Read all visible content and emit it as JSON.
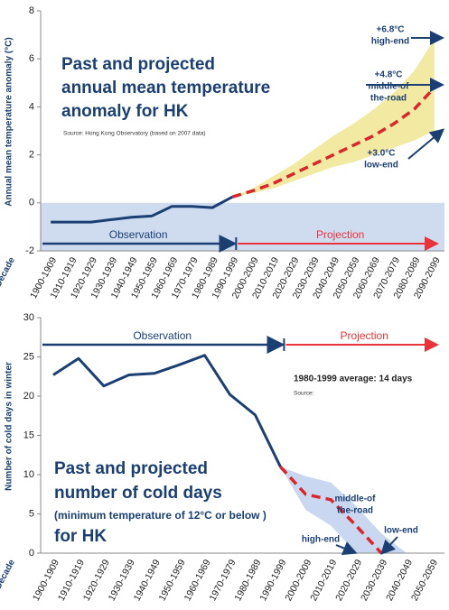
{
  "chart_data": [
    {
      "type": "line",
      "title": [
        "Past and projected",
        "annual mean temperature",
        "anomaly for HK"
      ],
      "source": "Source: Hong Kong Observatory (based on 2007 data)",
      "ylabel": "Annual mean temperature anomaly (°C)",
      "xlabel": "Decade",
      "categories": [
        "1900-1909",
        "1910-1919",
        "1920-1929",
        "1930-1939",
        "1940-1949",
        "1950-1959",
        "1960-1969",
        "1970-1979",
        "1980-1989",
        "1990-1999",
        "2000-2009",
        "2010-2019",
        "2020-2029",
        "2030-2039",
        "2040-2049",
        "2050-2059",
        "2060-2069",
        "2070-2079",
        "2080-2089",
        "2090-2099"
      ],
      "series": [
        {
          "name": "Observation",
          "color": "#1b3f73",
          "dash": false,
          "values": [
            -0.8,
            -0.8,
            -0.8,
            -0.7,
            -0.6,
            -0.55,
            -0.15,
            -0.15,
            -0.2,
            0.25,
            null,
            null,
            null,
            null,
            null,
            null,
            null,
            null,
            null,
            null
          ]
        },
        {
          "name": "Projection",
          "color": "#d9262b",
          "dash": true,
          "values": [
            null,
            null,
            null,
            null,
            null,
            null,
            null,
            null,
            null,
            0.25,
            0.5,
            0.8,
            1.2,
            1.6,
            2.0,
            2.4,
            2.8,
            3.3,
            3.9,
            4.8
          ]
        }
      ],
      "band": {
        "color": "#f2eaa2",
        "upper": [
          null,
          null,
          null,
          null,
          null,
          null,
          null,
          null,
          null,
          0.25,
          0.6,
          1.1,
          1.6,
          2.2,
          2.8,
          3.3,
          3.9,
          4.6,
          5.5,
          6.8
        ],
        "lower": [
          null,
          null,
          null,
          null,
          null,
          null,
          null,
          null,
          null,
          0.25,
          0.4,
          0.6,
          0.9,
          1.2,
          1.5,
          1.7,
          2.0,
          2.3,
          2.6,
          3.0
        ]
      },
      "annotations": [
        [
          "+6.8°C",
          "high-end"
        ],
        [
          "+4.8°C",
          "middle-of",
          "the-road"
        ],
        [
          "+3.0°C",
          "low-end"
        ]
      ],
      "ylim": [
        -2,
        8
      ],
      "yticks": [
        -2,
        0,
        2,
        4,
        6,
        8
      ]
    },
    {
      "type": "line",
      "title": [
        "Past and projected",
        "number of cold days"
      ],
      "subtitle": "(minimum temperature of 12°C or below )",
      "title_end": "for HK",
      "note": "1980-1999 average: 14 days",
      "source": "Source:",
      "ylabel": "Number of cold days in winter",
      "xlabel": "Decade",
      "categories": [
        "1900-1909",
        "1910-1919",
        "1920-1929",
        "1930-1939",
        "1940-1949",
        "1950-1959",
        "1960-1969",
        "1970-1979",
        "1980-1989",
        "1990-1999",
        "2000-2009",
        "2010-2019",
        "2020-2029",
        "2030-2039",
        "2040-2049",
        "2050-2059"
      ],
      "series": [
        {
          "name": "Observation",
          "color": "#1b3f73",
          "dash": false,
          "values": [
            22.7,
            24.8,
            21.3,
            22.7,
            22.9,
            24,
            25.2,
            20.2,
            17.6,
            11,
            null,
            null,
            null,
            null,
            null,
            null
          ]
        },
        {
          "name": "Projection",
          "color": "#d9262b",
          "dash": true,
          "values": [
            null,
            null,
            null,
            null,
            null,
            null,
            null,
            null,
            null,
            11,
            7.5,
            6.8,
            3.5,
            0,
            null,
            null
          ]
        }
      ],
      "band": {
        "color": "#c9d8f0",
        "upper": [
          null,
          null,
          null,
          null,
          null,
          null,
          null,
          null,
          null,
          11,
          9.8,
          9,
          6,
          2.5,
          0,
          null
        ],
        "lower": [
          null,
          null,
          null,
          null,
          null,
          null,
          null,
          null,
          null,
          11,
          5.5,
          3.5,
          0,
          null,
          null,
          null
        ]
      },
      "annotations": [
        [
          "middle-of",
          "the-road"
        ],
        [
          "high-end"
        ],
        [
          "low-end"
        ]
      ],
      "ylim": [
        0,
        30
      ],
      "yticks": [
        0,
        5,
        10,
        15,
        20,
        25,
        30
      ]
    }
  ]
}
